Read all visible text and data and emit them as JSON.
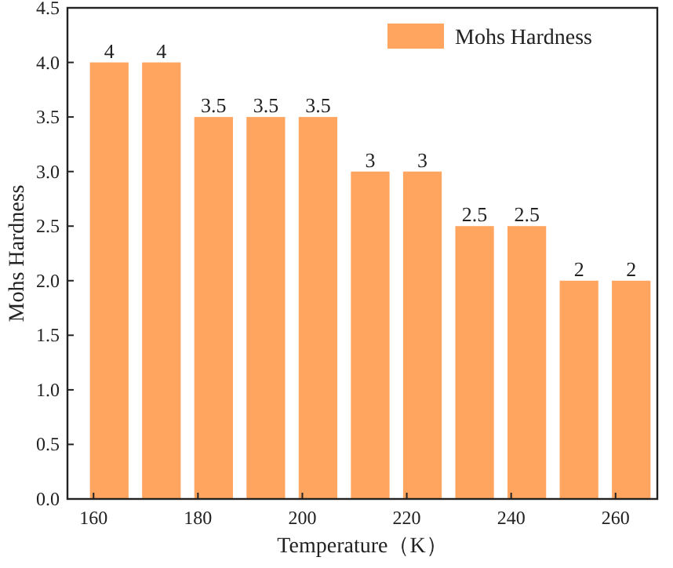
{
  "chart_data": {
    "type": "bar",
    "xlabel": "Temperature（K）",
    "ylabel": "Mohs Hardness",
    "x": [
      163,
      173,
      183,
      193,
      203,
      213,
      223,
      233,
      243,
      253,
      263
    ],
    "series": [
      {
        "name": "Mohs Hardness",
        "color": "#ffa55f",
        "values": [
          4,
          4,
          3.5,
          3.5,
          3.5,
          3,
          3,
          2.5,
          2.5,
          2,
          2
        ]
      }
    ],
    "data_labels": true,
    "legend": "top right",
    "xlim": [
      155,
      268
    ],
    "xticks": [
      160,
      180,
      200,
      220,
      240,
      260
    ],
    "ylim": [
      0,
      4.5
    ],
    "yticks": [
      {
        "value": 0,
        "label": "0.0"
      },
      0.5,
      {
        "value": 1,
        "label": "1.0"
      },
      1.5,
      {
        "value": 2,
        "label": "2.0"
      },
      2.5,
      {
        "value": 3,
        "label": "3.0"
      },
      3.5,
      {
        "value": 4,
        "label": "4.0"
      },
      4.5
    ]
  }
}
